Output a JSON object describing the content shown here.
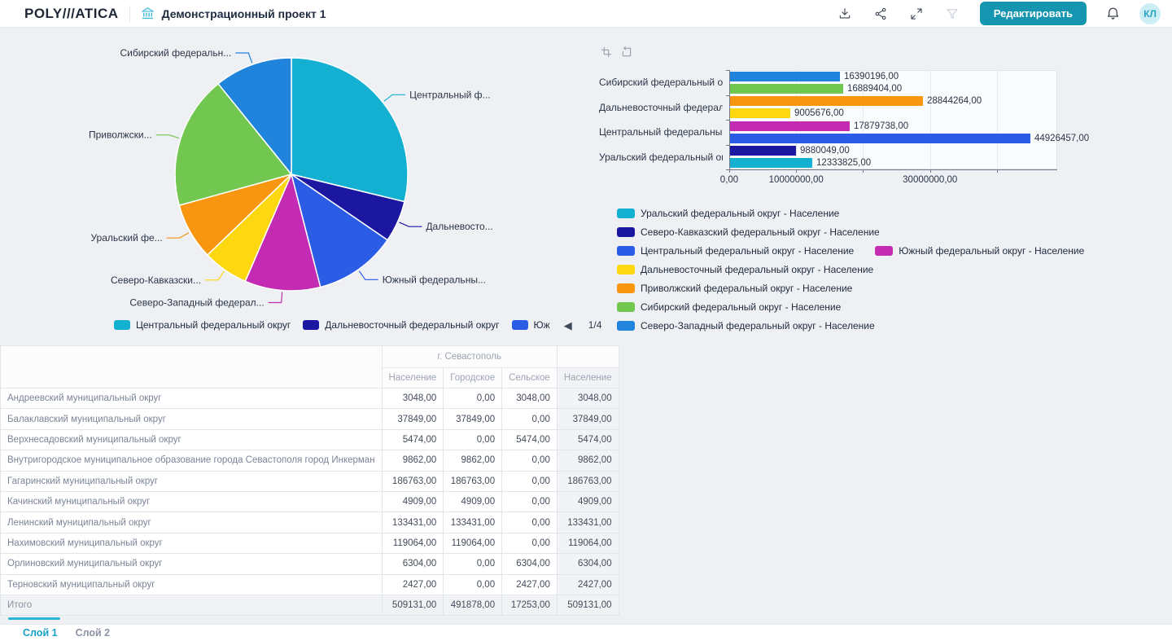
{
  "header": {
    "logo": "POLY///ATICA",
    "title": "Демонстрационный проект 1",
    "edit_button": "Редактировать",
    "avatar_initials": "КЛ"
  },
  "theme": {
    "accent": "#1695b0",
    "active_tab_color": "#189fc7",
    "scrollbar_color": "#2cb4d8"
  },
  "chart_data": [
    {
      "id": "pie-population",
      "type": "pie",
      "legend_position": "bottom",
      "slices": [
        {
          "name": "Центральный федеральный округ",
          "label_display": "Центральный ф...",
          "value": 44926457,
          "color": "#14b0d2"
        },
        {
          "name": "Дальневосточный федеральный округ",
          "label_display": "Дальневосто...",
          "value": 9005676,
          "color": "#1b17a0"
        },
        {
          "name": "Южный федеральный округ",
          "label_display": "Южный федеральны...",
          "value": 17879738,
          "color": "#2b5ce6"
        },
        {
          "name": "Северо-Западный федеральный округ",
          "label_display": "Северо-Западный федерал...",
          "value": 16390196,
          "color": "#c32cb2"
        },
        {
          "name": "Северо-Кавказский федеральный округ",
          "label_display": "Северо-Кавказски...",
          "value": 9880049,
          "color": "#fdd70f"
        },
        {
          "name": "Уральский федеральный округ",
          "label_display": "Уральский фе...",
          "value": 12333825,
          "color": "#f99610"
        },
        {
          "name": "Приволжский федеральный округ",
          "label_display": "Приволжски...",
          "value": 28844264,
          "color": "#72c751"
        },
        {
          "name": "Сибирский федеральный округ",
          "label_display": "Сибирский федеральн...",
          "value": 16889404,
          "color": "#2184dc"
        }
      ],
      "legend_visible": [
        {
          "label": "Центральный федеральный округ",
          "color": "#14b0d2"
        },
        {
          "label": "Дальневосточный федеральный округ",
          "color": "#1b17a0"
        },
        {
          "label": "Юж",
          "color": "#2b5ce6"
        }
      ],
      "legend_pagination": "1/4"
    },
    {
      "id": "bar-population",
      "type": "bar",
      "orientation": "horizontal",
      "value_suffix": ",00",
      "groups": [
        {
          "category": "Сибирский федеральный округ",
          "bars": [
            {
              "series": "Северо-Западный федеральный округ - Население",
              "value": 16390196,
              "color": "#2184dc"
            },
            {
              "series": "Сибирский федеральный округ - Население",
              "value": 16889404,
              "color": "#72c751"
            }
          ]
        },
        {
          "category": "Дальневосточный федеральный ок...",
          "bars": [
            {
              "series": "Приволжский федеральный округ - Население",
              "value": 28844264,
              "color": "#f99610"
            },
            {
              "series": "Дальневосточный федеральный округ - Население",
              "value": 9005676,
              "color": "#fdd70f"
            }
          ]
        },
        {
          "category": "Центральный федеральный округ",
          "bars": [
            {
              "series": "Южный федеральный округ - Население",
              "value": 17879738,
              "color": "#c32cb2"
            },
            {
              "series": "Центральный федеральный округ - Население",
              "value": 44926457,
              "color": "#2b5ce6"
            }
          ]
        },
        {
          "category": "Уральский федеральный округ",
          "bars": [
            {
              "series": "Северо-Кавказский федеральный округ - Население",
              "value": 9880049,
              "color": "#1b17a0"
            },
            {
              "series": "Уральский федеральный округ - Население",
              "value": 12333825,
              "color": "#14b0d2"
            }
          ]
        }
      ],
      "x_axis": {
        "ticks": [
          0,
          10000000,
          20000000,
          30000000,
          40000000
        ],
        "labeled": [
          0,
          10000000,
          30000000
        ],
        "max": 49000000
      },
      "legend_rows": [
        [
          {
            "label": "Уральский федеральный округ - Население",
            "color": "#14b0d2"
          }
        ],
        [
          {
            "label": "Северо-Кавказский федеральный округ - Население",
            "color": "#1b17a0"
          }
        ],
        [
          {
            "label": "Центральный федеральный округ - Население",
            "color": "#2b5ce6"
          },
          {
            "label": "Южный федеральный округ - Население",
            "color": "#c32cb2"
          }
        ],
        [
          {
            "label": "Дальневосточный федеральный округ - Население",
            "color": "#fdd70f"
          }
        ],
        [
          {
            "label": "Приволжский федеральный округ - Население",
            "color": "#f99610"
          }
        ],
        [
          {
            "label": "Сибирский федеральный округ - Население",
            "color": "#72c751"
          }
        ],
        [
          {
            "label": "Северо-Западный федеральный округ - Население",
            "color": "#2184dc"
          }
        ]
      ]
    },
    {
      "id": "table-sevastopol",
      "type": "table",
      "group_header": "г. Севастополь",
      "columns": [
        "Население",
        "Городское",
        "Сельское",
        "Население"
      ],
      "rows": [
        {
          "name": "Андреевский муниципальный округ",
          "values": [
            3048,
            0,
            3048,
            3048
          ]
        },
        {
          "name": "Балаклавский муниципальный округ",
          "values": [
            37849,
            37849,
            0,
            37849
          ]
        },
        {
          "name": "Верхнесадовский муниципальный округ",
          "values": [
            5474,
            0,
            5474,
            5474
          ]
        },
        {
          "name": "Внутригородское муниципальное образование города Севастополя город Инкерман",
          "values": [
            9862,
            9862,
            0,
            9862
          ]
        },
        {
          "name": "Гагаринский муниципальный округ",
          "values": [
            186763,
            186763,
            0,
            186763
          ]
        },
        {
          "name": "Качинский муниципальный округ",
          "values": [
            4909,
            4909,
            0,
            4909
          ]
        },
        {
          "name": "Ленинский муниципальный округ",
          "values": [
            133431,
            133431,
            0,
            133431
          ]
        },
        {
          "name": "Нахимовский муниципальный округ",
          "values": [
            119064,
            119064,
            0,
            119064
          ]
        },
        {
          "name": "Орлиновский муниципальный округ",
          "values": [
            6304,
            0,
            6304,
            6304
          ]
        },
        {
          "name": "Терновский муниципальный округ",
          "values": [
            2427,
            0,
            2427,
            2427
          ]
        }
      ],
      "total_row": {
        "name": "Итого",
        "values": [
          509131,
          491878,
          17253,
          509131
        ]
      }
    }
  ],
  "footer": {
    "tabs": [
      {
        "label": "Слой 1",
        "active": true
      },
      {
        "label": "Слой 2",
        "active": false
      }
    ]
  }
}
